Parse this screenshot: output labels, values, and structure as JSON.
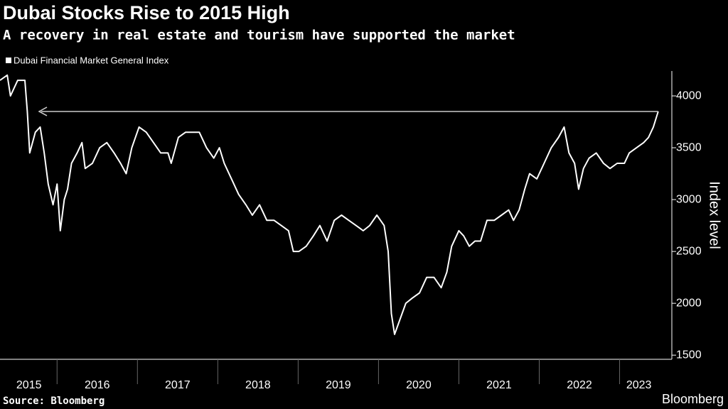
{
  "chart_data": {
    "type": "line",
    "title": "Dubai Stocks Rise to 2015 High",
    "subtitle": "A recovery in real estate and tourism have supported the market",
    "y_label": "Index level",
    "source": "Source: Bloomberg",
    "brand": "Bloomberg",
    "grid": false,
    "xlim": [
      2015.29,
      2023.65
    ],
    "xticks": [
      {
        "value": 2015.65,
        "label": "2015"
      },
      {
        "value": 2016.5,
        "label": "2016"
      },
      {
        "value": 2017.5,
        "label": "2017"
      },
      {
        "value": 2018.5,
        "label": "2018"
      },
      {
        "value": 2019.5,
        "label": "2019"
      },
      {
        "value": 2020.5,
        "label": "2020"
      },
      {
        "value": 2021.5,
        "label": "2021"
      },
      {
        "value": 2022.5,
        "label": "2022"
      },
      {
        "value": 2023.24,
        "label": "2023"
      }
    ],
    "ylim": [
      1460,
      4240
    ],
    "yticks": [
      1500,
      2000,
      2500,
      3000,
      3500,
      4000
    ],
    "x": [
      2015.29,
      2015.38,
      2015.42,
      2015.51,
      2015.6,
      2015.63,
      2015.66,
      2015.73,
      2015.79,
      2015.84,
      2015.89,
      2015.95,
      2016.0,
      2016.04,
      2016.09,
      2016.13,
      2016.18,
      2016.25,
      2016.31,
      2016.35,
      2016.44,
      2016.53,
      2016.62,
      2016.71,
      2016.79,
      2016.86,
      2016.93,
      2017.02,
      2017.11,
      2017.2,
      2017.29,
      2017.38,
      2017.42,
      2017.51,
      2017.6,
      2017.69,
      2017.77,
      2017.86,
      2017.95,
      2018.02,
      2018.08,
      2018.17,
      2018.26,
      2018.35,
      2018.43,
      2018.52,
      2018.61,
      2018.7,
      2018.79,
      2018.88,
      2018.94,
      2019.01,
      2019.1,
      2019.19,
      2019.27,
      2019.36,
      2019.45,
      2019.54,
      2019.63,
      2019.72,
      2019.81,
      2019.89,
      2019.98,
      2020.07,
      2020.12,
      2020.16,
      2020.2,
      2020.27,
      2020.34,
      2020.42,
      2020.51,
      2020.6,
      2020.69,
      2020.78,
      2020.85,
      2020.91,
      2021.0,
      2021.06,
      2021.13,
      2021.2,
      2021.27,
      2021.35,
      2021.44,
      2021.53,
      2021.62,
      2021.68,
      2021.75,
      2021.82,
      2021.88,
      2021.97,
      2022.06,
      2022.15,
      2022.24,
      2022.31,
      2022.37,
      2022.44,
      2022.49,
      2022.55,
      2022.62,
      2022.71,
      2022.8,
      2022.88,
      2022.97,
      2023.06,
      2023.12,
      2023.21,
      2023.3,
      2023.36,
      2023.42,
      2023.48
    ],
    "series": [
      {
        "name": "Dubai Financial Market General Index",
        "color": "#ffffff",
        "values": [
          4150,
          4200,
          4000,
          4150,
          4150,
          3850,
          3450,
          3650,
          3700,
          3450,
          3150,
          2950,
          3150,
          2700,
          3000,
          3100,
          3350,
          3450,
          3550,
          3300,
          3350,
          3500,
          3550,
          3450,
          3350,
          3250,
          3500,
          3700,
          3650,
          3550,
          3450,
          3450,
          3350,
          3600,
          3650,
          3650,
          3650,
          3500,
          3400,
          3500,
          3350,
          3200,
          3050,
          2950,
          2850,
          2950,
          2800,
          2800,
          2750,
          2700,
          2500,
          2500,
          2550,
          2650,
          2750,
          2600,
          2800,
          2850,
          2800,
          2750,
          2700,
          2750,
          2850,
          2750,
          2500,
          1900,
          1700,
          1850,
          2000,
          2050,
          2100,
          2250,
          2250,
          2150,
          2300,
          2550,
          2700,
          2650,
          2550,
          2600,
          2600,
          2800,
          2800,
          2850,
          2900,
          2800,
          2900,
          3100,
          3250,
          3200,
          3350,
          3500,
          3600,
          3700,
          3450,
          3350,
          3100,
          3300,
          3400,
          3450,
          3350,
          3300,
          3350,
          3350,
          3450,
          3500,
          3550,
          3600,
          3700,
          3850
        ]
      }
    ]
  }
}
